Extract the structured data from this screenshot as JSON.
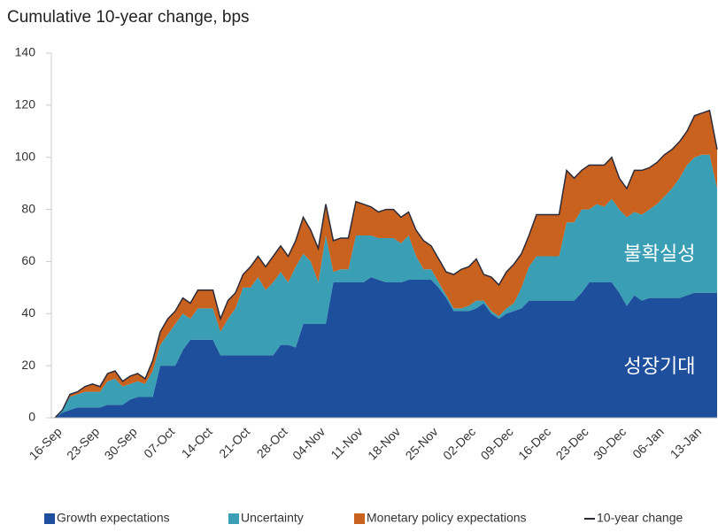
{
  "chart_data": {
    "type": "area",
    "stacked": true,
    "title": "Cumulative 10-year change, bps",
    "annotations": [
      "불확실성",
      "성장기대"
    ],
    "categories": [
      "16-Sep",
      null,
      null,
      null,
      null,
      "23-Sep",
      null,
      null,
      null,
      null,
      "30-Sep",
      null,
      null,
      null,
      null,
      "07-Oct",
      null,
      null,
      null,
      null,
      "14-Oct",
      null,
      null,
      null,
      null,
      "21-Oct",
      null,
      null,
      null,
      null,
      "28-Oct",
      null,
      null,
      null,
      null,
      "04-Nov",
      null,
      null,
      null,
      null,
      "11-Nov",
      null,
      null,
      null,
      null,
      "18-Nov",
      null,
      null,
      null,
      null,
      "25-Nov",
      null,
      null,
      null,
      null,
      "02-Dec",
      null,
      null,
      null,
      null,
      "09-Dec",
      null,
      null,
      null,
      null,
      "16-Dec",
      null,
      null,
      null,
      null,
      "23-Dec",
      null,
      null,
      null,
      null,
      "30-Dec",
      null,
      null,
      null,
      null,
      "06-Jan",
      null,
      null,
      null,
      null,
      "13-Jan",
      null,
      null,
      null
    ],
    "series": [
      {
        "name": "Growth expectations",
        "color": "#1e4f9c",
        "values": [
          0,
          2,
          3,
          4,
          4,
          4,
          4,
          5,
          5,
          5,
          7,
          8,
          8,
          8,
          20,
          20,
          20,
          26,
          30,
          30,
          30,
          30,
          24,
          24,
          24,
          24,
          24,
          24,
          24,
          24,
          28,
          28,
          27,
          36,
          36,
          36,
          36,
          52,
          52,
          52,
          52,
          52,
          54,
          53,
          52,
          52,
          52,
          53,
          53,
          53,
          53,
          50,
          46,
          41,
          41,
          41,
          42,
          44,
          40,
          38,
          40,
          41,
          42,
          45,
          45,
          45,
          45,
          45,
          45,
          45,
          48,
          52,
          52,
          52,
          52,
          48,
          43,
          47,
          45,
          46,
          46,
          46,
          46,
          46,
          47,
          48,
          48,
          48,
          48
        ]
      },
      {
        "name": "Uncertainty",
        "color": "#3a9fb4",
        "values": [
          0,
          1,
          5,
          5,
          6,
          6,
          6,
          9,
          10,
          7,
          6,
          6,
          5,
          10,
          8,
          12,
          16,
          14,
          8,
          12,
          12,
          12,
          9,
          14,
          18,
          26,
          26,
          30,
          25,
          28,
          28,
          24,
          31,
          27,
          24,
          16,
          34,
          4,
          5,
          5,
          18,
          18,
          16,
          16,
          17,
          17,
          15,
          17,
          9,
          4,
          4,
          2,
          1,
          1,
          1,
          2,
          3,
          1,
          1,
          1,
          2,
          3,
          8,
          13,
          17,
          17,
          17,
          17,
          30,
          30,
          32,
          28,
          30,
          29,
          32,
          32,
          34,
          32,
          33,
          34,
          36,
          39,
          42,
          46,
          50,
          52,
          53,
          53,
          40
        ]
      },
      {
        "name": "Monetary policy expectations",
        "color": "#c8621e",
        "values": [
          0,
          0,
          1,
          1,
          2,
          3,
          2,
          3,
          3,
          2,
          3,
          3,
          2,
          4,
          5,
          6,
          5,
          6,
          6,
          7,
          7,
          7,
          5,
          7,
          6,
          5,
          8,
          8,
          9,
          10,
          10,
          10,
          10,
          14,
          12,
          13,
          12,
          12,
          12,
          12,
          13,
          12,
          11,
          10,
          11,
          11,
          10,
          9,
          10,
          11,
          9,
          9,
          9,
          13,
          15,
          15,
          16,
          10,
          13,
          12,
          14,
          15,
          13,
          12,
          16,
          16,
          16,
          16,
          20,
          17,
          15,
          17,
          15,
          16,
          16,
          12,
          11,
          16,
          17,
          16,
          16,
          16,
          15,
          14,
          13,
          16,
          16,
          17,
          15
        ]
      },
      {
        "name": "10-year change",
        "type": "line",
        "color": "#2b2b3b",
        "values": [
          0,
          3,
          9,
          10,
          12,
          13,
          12,
          17,
          18,
          14,
          16,
          17,
          15,
          22,
          33,
          38,
          41,
          46,
          44,
          49,
          49,
          49,
          38,
          45,
          48,
          55,
          58,
          62,
          58,
          62,
          66,
          62,
          68,
          77,
          72,
          65,
          82,
          68,
          69,
          69,
          83,
          82,
          81,
          79,
          80,
          80,
          77,
          79,
          72,
          68,
          66,
          61,
          56,
          55,
          57,
          58,
          61,
          55,
          54,
          51,
          56,
          59,
          63,
          70,
          78,
          78,
          78,
          78,
          95,
          92,
          95,
          97,
          97,
          97,
          100,
          92,
          88,
          95,
          95,
          96,
          98,
          101,
          103,
          106,
          110,
          116,
          117,
          118,
          103
        ]
      }
    ],
    "ylim": [
      0,
      140
    ],
    "yticks": [
      0,
      20,
      40,
      60,
      80,
      100,
      120,
      140
    ],
    "grid": false,
    "legend": "bottom"
  }
}
